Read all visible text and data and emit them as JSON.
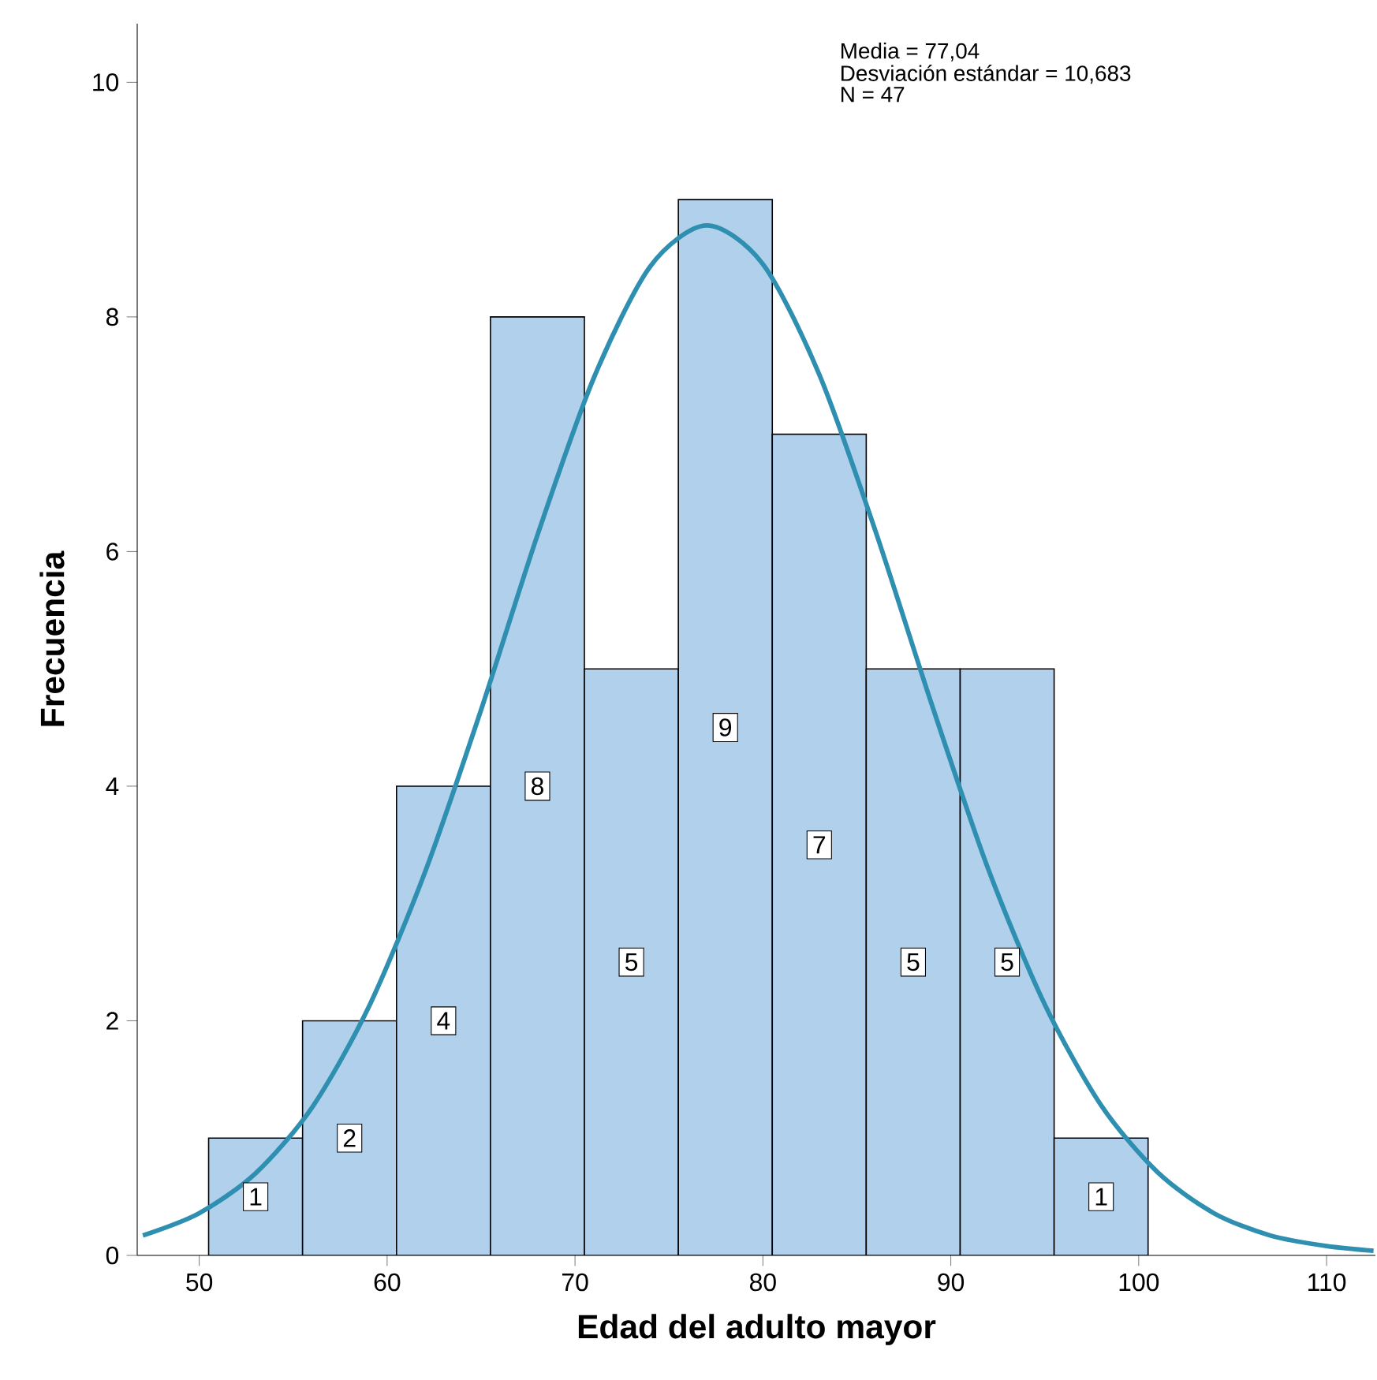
{
  "chart_data": {
    "type": "histogram",
    "xlabel": "Edad del adulto mayor",
    "ylabel": "Frecuencia",
    "bins": [
      50.5,
      55.5,
      60.5,
      65.5,
      70.5,
      75.5,
      80.5,
      85.5,
      90.5,
      95.5,
      100.5
    ],
    "values": [
      1,
      2,
      4,
      8,
      5,
      9,
      7,
      5,
      5,
      1
    ],
    "color": "#b0d0ec",
    "value_labels": [
      "1",
      "2",
      "4",
      "8",
      "5",
      "9",
      "7",
      "5",
      "5",
      "1"
    ],
    "series": [
      {
        "type": "line",
        "color": "#2e8fb0",
        "x": [
          47,
          50,
          53,
          56,
          59,
          62,
          65,
          68,
          71,
          74,
          77,
          80,
          83,
          86,
          89,
          92,
          95,
          98,
          101,
          104,
          107,
          110,
          112.5
        ],
        "values": [
          0.17,
          0.36,
          0.7,
          1.26,
          2.11,
          3.26,
          4.65,
          6.14,
          7.48,
          8.43,
          8.78,
          8.45,
          7.51,
          6.17,
          4.69,
          3.29,
          2.14,
          1.28,
          0.71,
          0.36,
          0.17,
          0.08,
          0.04
        ]
      }
    ],
    "xlim": [
      46.7,
      112.6
    ],
    "ylim": [
      0,
      10.5
    ],
    "xticks": [
      50,
      60,
      70,
      80,
      90,
      100,
      110
    ],
    "yticks": [
      0,
      2,
      4,
      6,
      8,
      10
    ],
    "grid": false,
    "annotations": [
      "Media = 77,04",
      "Desviación estándar = 10,683",
      "N = 47"
    ]
  }
}
